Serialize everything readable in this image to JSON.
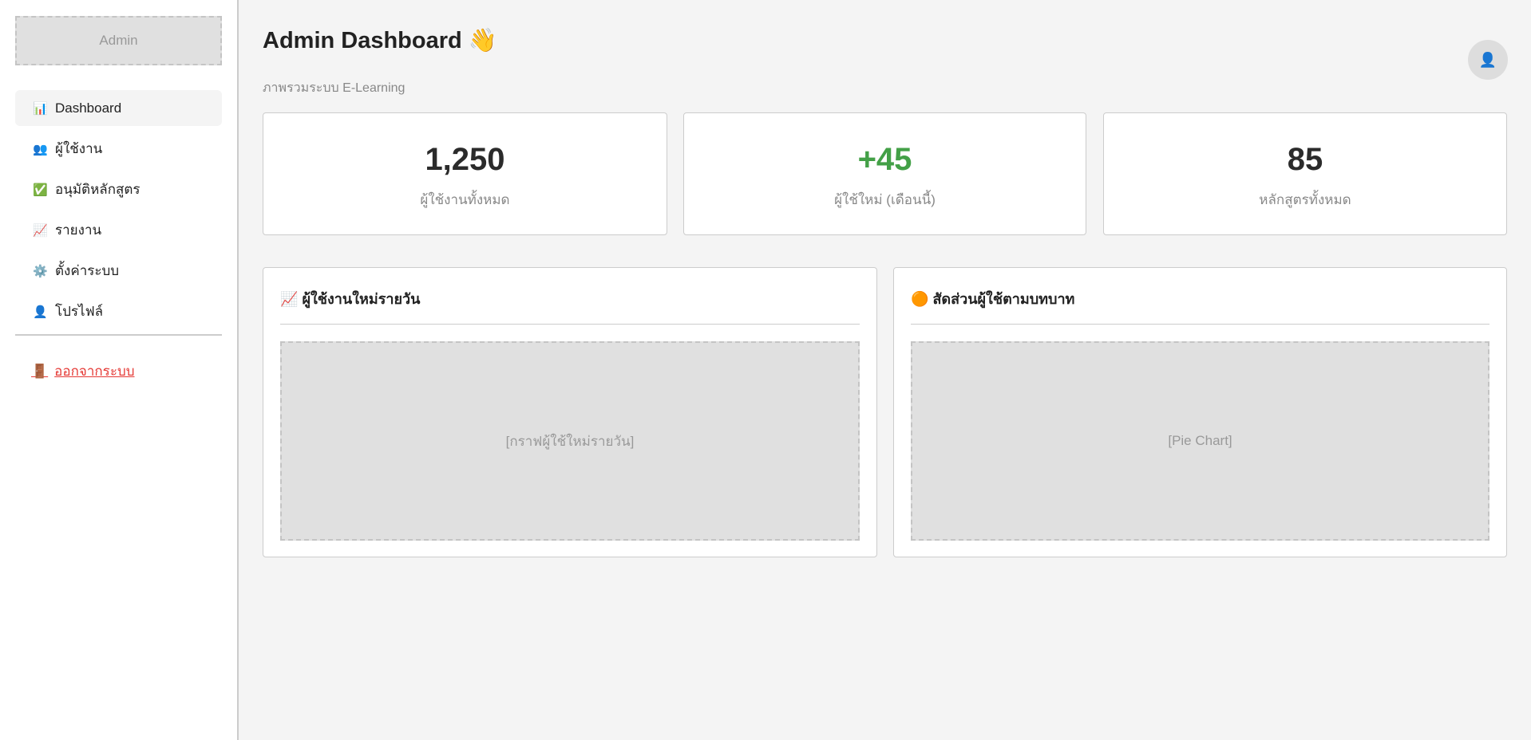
{
  "sidebar": {
    "logo": "Admin",
    "items": [
      {
        "icon": "📊",
        "label": "Dashboard",
        "active": true
      },
      {
        "icon": "👥",
        "label": "ผู้ใช้งาน"
      },
      {
        "icon": "✅",
        "label": "อนุมัติหลักสูตร"
      },
      {
        "icon": "📈",
        "label": "รายงาน"
      },
      {
        "icon": "⚙️",
        "label": "ตั้งค่าระบบ"
      },
      {
        "icon": "👤",
        "label": "โปรไฟล์"
      }
    ],
    "logout": {
      "icon": "🚪",
      "label": "ออกจากระบบ"
    }
  },
  "header": {
    "title": "Admin Dashboard 👋",
    "subtitle": "ภาพรวมระบบ E-Learning",
    "avatar_icon": "👤"
  },
  "stats": [
    {
      "value": "1,250",
      "label": "ผู้ใช้งานทั้งหมด",
      "color": "#2b2b2b"
    },
    {
      "value": "+45",
      "label": "ผู้ใช้ใหม่ (เดือนนี้)",
      "color": "#43a047"
    },
    {
      "value": "85",
      "label": "หลักสูตรทั้งหมด",
      "color": "#2b2b2b"
    }
  ],
  "charts": [
    {
      "icon": "📈",
      "title": "ผู้ใช้งานใหม่รายวัน",
      "placeholder": "[กราฟผู้ใช้ใหม่รายวัน]"
    },
    {
      "icon": "🟠",
      "title": "สัดส่วนผู้ใช้ตามบทบาท",
      "placeholder": "[Pie Chart]"
    }
  ],
  "colors": {
    "logout": "#e53935",
    "positive": "#43a047"
  }
}
